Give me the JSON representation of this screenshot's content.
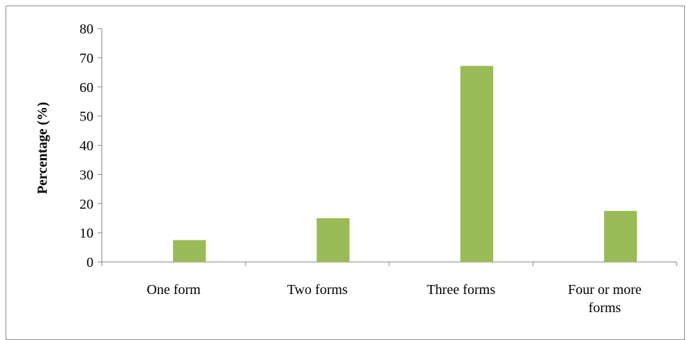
{
  "chart_data": {
    "type": "bar",
    "title": "",
    "xlabel": "",
    "ylabel": "Percentage (%)",
    "ylim": [
      0,
      80
    ],
    "yticks": [
      0,
      10,
      20,
      30,
      40,
      50,
      60,
      70,
      80
    ],
    "grid": false,
    "legend": "none",
    "categories": [
      [
        "One form"
      ],
      [
        "Two forms"
      ],
      [
        "Three forms"
      ],
      [
        "Four or more",
        "forms"
      ]
    ],
    "series": [
      {
        "values": [
          7.5,
          15,
          67.2,
          17.5
        ],
        "color": "#9bbb59"
      }
    ]
  }
}
